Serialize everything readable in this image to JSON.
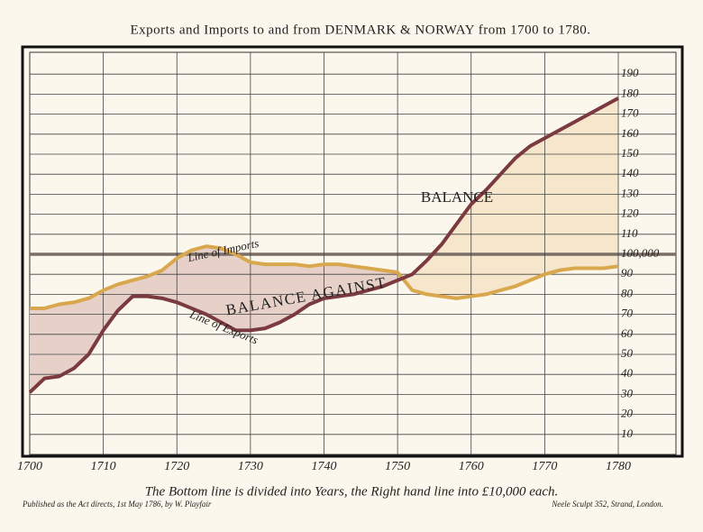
{
  "chart_data": {
    "type": "line",
    "title": "Exports and Imports to and from DENMARK & NORWAY from 1700 to 1780.",
    "x": [
      1700,
      1702,
      1704,
      1706,
      1708,
      1710,
      1712,
      1714,
      1716,
      1718,
      1720,
      1722,
      1724,
      1726,
      1728,
      1730,
      1732,
      1734,
      1736,
      1738,
      1740,
      1742,
      1744,
      1746,
      1748,
      1750,
      1752,
      1754,
      1756,
      1758,
      1760,
      1762,
      1764,
      1766,
      1768,
      1770,
      1772,
      1774,
      1776,
      1778,
      1780
    ],
    "series": [
      {
        "name": "Line of Imports",
        "color": "#d9a84e",
        "values": [
          73,
          73,
          75,
          76,
          78,
          82,
          85,
          87,
          89,
          92,
          98,
          102,
          104,
          103,
          100,
          96,
          95,
          95,
          95,
          94,
          95,
          95,
          94,
          93,
          92,
          91,
          82,
          80,
          79,
          78,
          79,
          80,
          82,
          84,
          87,
          90,
          92,
          93,
          93,
          93,
          94
        ]
      },
      {
        "name": "Line of Exports",
        "color": "#7a3a3f",
        "values": [
          31,
          38,
          39,
          43,
          50,
          62,
          72,
          79,
          79,
          78,
          76,
          73,
          70,
          66,
          62,
          62,
          63,
          66,
          70,
          75,
          78,
          79,
          80,
          82,
          84,
          87,
          90,
          97,
          105,
          115,
          125,
          132,
          140,
          148,
          154,
          158,
          162,
          166,
          170,
          174,
          178
        ]
      }
    ],
    "annotations": [
      "BALANCE",
      "BALANCE AGAINST"
    ],
    "xlim": [
      1700,
      1780
    ],
    "xticks": [
      1700,
      1710,
      1720,
      1730,
      1740,
      1750,
      1760,
      1770,
      1780
    ],
    "ylim": [
      0,
      200
    ],
    "yticks": [
      10,
      20,
      30,
      40,
      50,
      60,
      70,
      80,
      90,
      {
        "value": 100,
        "label": "100,000"
      },
      110,
      120,
      130,
      140,
      150,
      160,
      170,
      180,
      190
    ],
    "grid": true,
    "footer": {
      "caption": "The Bottom line is divided into Years, the Right hand line into £10,000 each.",
      "left": "Published as the Act directs, 1st May 1786, by W. Playfair",
      "right": "Neele Sculpt 352, Strand, London."
    }
  }
}
